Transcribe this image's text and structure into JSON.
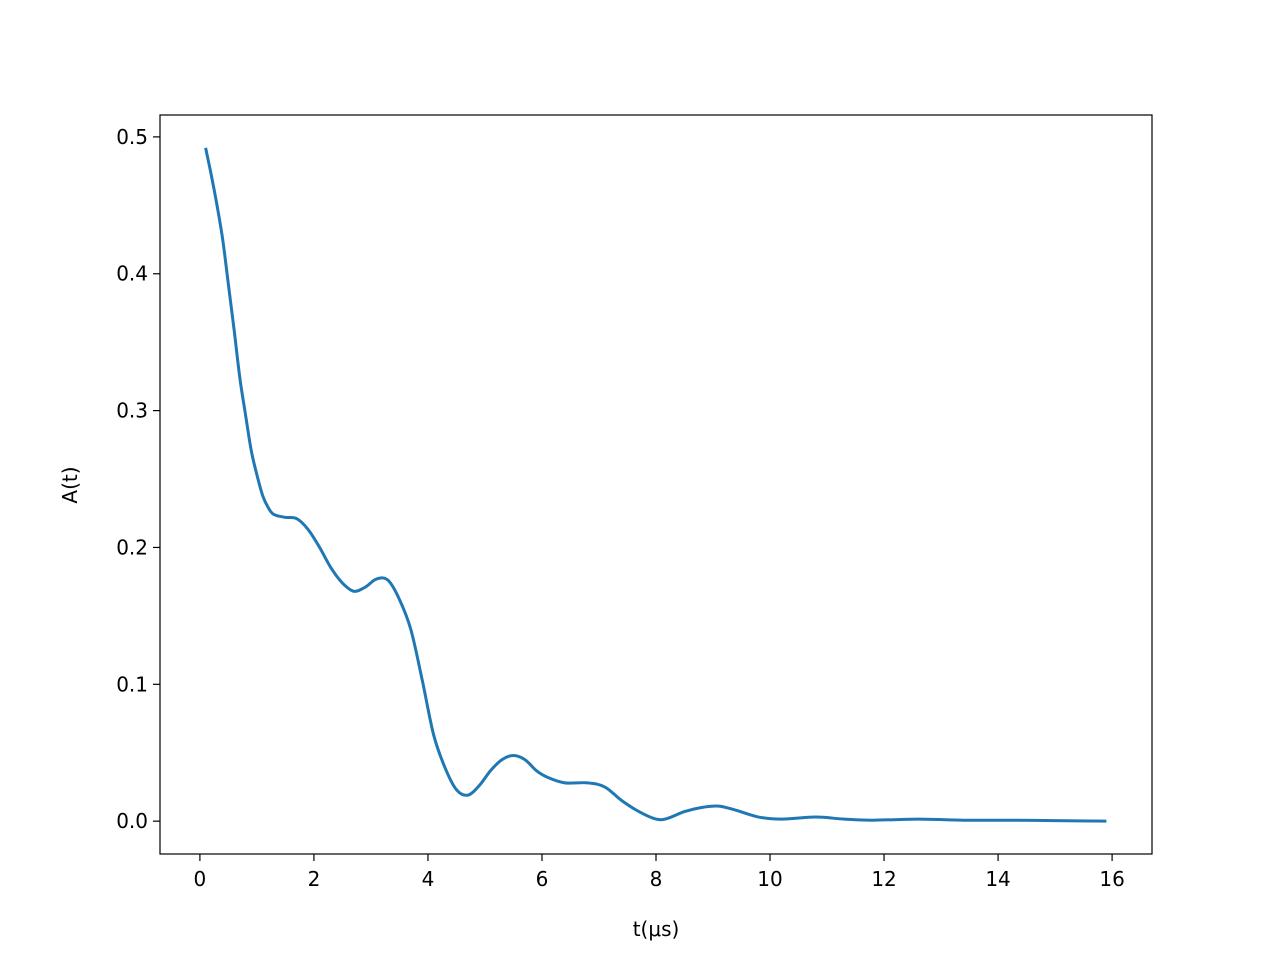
{
  "chart_data": {
    "type": "line",
    "title": "",
    "xlabel": "t(μs)",
    "ylabel": "A(t)",
    "xlim": [
      -0.7,
      16.7
    ],
    "ylim": [
      -0.024,
      0.516
    ],
    "xticks": [
      "0",
      "2",
      "4",
      "6",
      "8",
      "10",
      "12",
      "14",
      "16"
    ],
    "yticks": [
      "0.0",
      "0.1",
      "0.2",
      "0.3",
      "0.4",
      "0.5"
    ],
    "grid": false,
    "series": [
      {
        "color": "#1f77b4",
        "x": [
          0.1,
          0.2,
          0.3,
          0.4,
          0.5,
          0.6,
          0.7,
          0.8,
          0.9,
          1.0,
          1.1,
          1.2,
          1.3,
          1.5,
          1.7,
          1.9,
          2.1,
          2.3,
          2.5,
          2.7,
          2.9,
          3.1,
          3.3,
          3.5,
          3.7,
          3.9,
          4.1,
          4.3,
          4.5,
          4.7,
          4.9,
          5.1,
          5.3,
          5.5,
          5.7,
          5.9,
          6.1,
          6.4,
          6.8,
          7.1,
          7.4,
          7.7,
          8.0,
          8.2,
          8.5,
          8.8,
          9.1,
          9.4,
          9.8,
          10.2,
          10.8,
          11.3,
          11.8,
          12.6,
          13.4,
          14.3,
          15.0,
          15.9
        ],
        "y": [
          0.492,
          0.472,
          0.45,
          0.425,
          0.392,
          0.359,
          0.324,
          0.297,
          0.271,
          0.253,
          0.238,
          0.229,
          0.224,
          0.222,
          0.221,
          0.213,
          0.2,
          0.185,
          0.174,
          0.168,
          0.171,
          0.177,
          0.176,
          0.162,
          0.14,
          0.103,
          0.063,
          0.039,
          0.023,
          0.019,
          0.026,
          0.037,
          0.045,
          0.048,
          0.045,
          0.037,
          0.032,
          0.028,
          0.028,
          0.025,
          0.015,
          0.007,
          0.0015,
          0.002,
          0.007,
          0.01,
          0.011,
          0.008,
          0.003,
          0.0015,
          0.003,
          0.0015,
          0.0007,
          0.0015,
          0.0007,
          0.0007,
          0.0004,
          0.0
        ]
      }
    ]
  }
}
